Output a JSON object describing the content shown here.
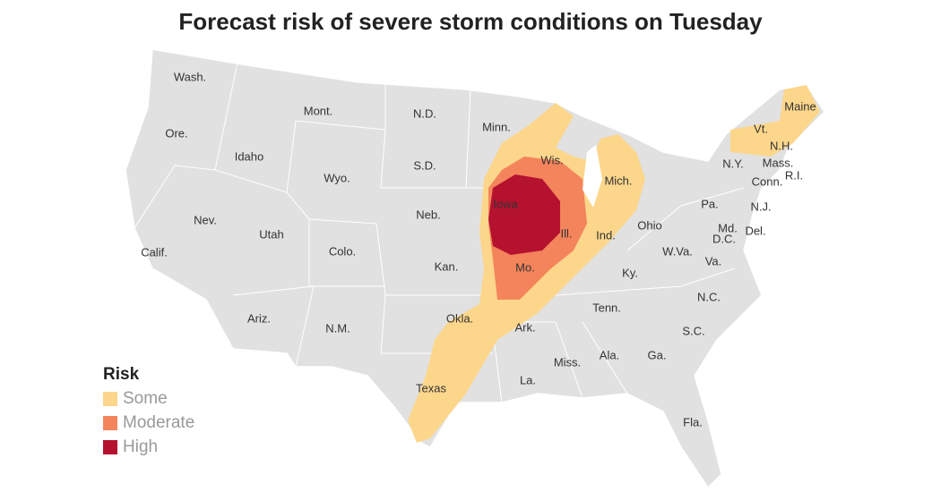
{
  "title": "Forecast risk of severe storm conditions on Tuesday",
  "states": [
    "Wash.",
    "Mont.",
    "N.D.",
    "Minn.",
    "Ore.",
    "Idaho",
    "Wyo.",
    "S.D.",
    "Wis.",
    "Mich.",
    "Maine",
    "Vt.",
    "N.H.",
    "N.Y.",
    "Mass.",
    "Conn.",
    "R.I.",
    "Nev.",
    "Utah",
    "Colo.",
    "Neb.",
    "Iowa",
    "Ill.",
    "Ind.",
    "Ohio",
    "Pa.",
    "N.J.",
    "Md.",
    "D.C.",
    "Del.",
    "Calif.",
    "Kan.",
    "Mo.",
    "Ky.",
    "W.Va.",
    "Va.",
    "N.C.",
    "Tenn.",
    "Ariz.",
    "N.M.",
    "Okla.",
    "Ark.",
    "S.C.",
    "Miss.",
    "Ala.",
    "Ga.",
    "La.",
    "Texas",
    "Fla."
  ],
  "legend": {
    "title": "Risk",
    "items": [
      {
        "label": "Some",
        "color": "#fcd68b"
      },
      {
        "label": "Moderate",
        "color": "#f4845c"
      },
      {
        "label": "High",
        "color": "#b5122f"
      }
    ]
  }
}
